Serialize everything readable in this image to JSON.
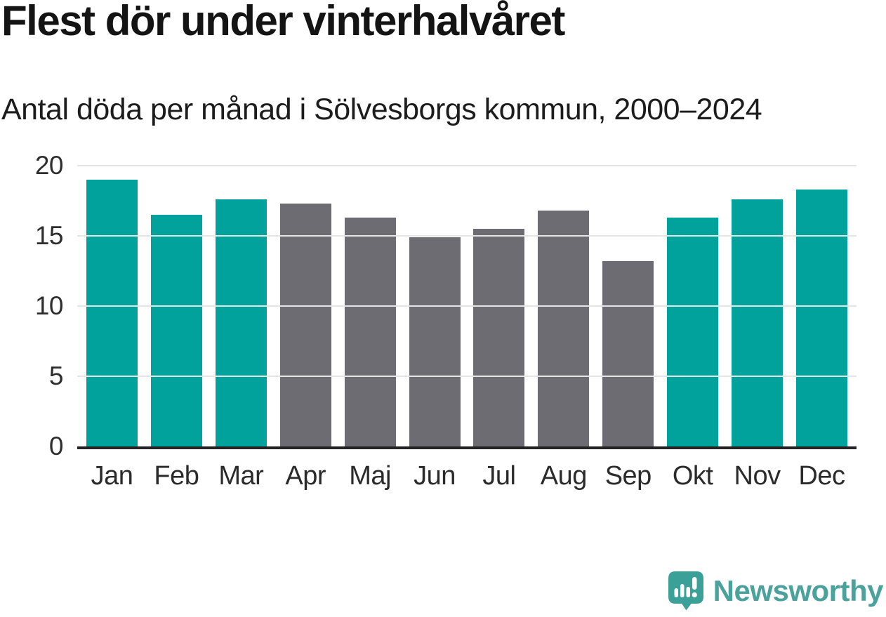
{
  "title": "Flest dör under vinterhalvåret",
  "subtitle": "Antal döda per månad i Sölvesborgs kommun, 2000–2024",
  "chart_data": {
    "type": "bar",
    "title": "Flest dör under vinterhalvåret",
    "subtitle": "Antal döda per månad i Sölvesborgs kommun, 2000–2024",
    "categories": [
      "Jan",
      "Feb",
      "Mar",
      "Apr",
      "Maj",
      "Jun",
      "Jul",
      "Aug",
      "Sep",
      "Okt",
      "Nov",
      "Dec"
    ],
    "values": [
      19.0,
      16.5,
      17.6,
      17.3,
      16.3,
      14.9,
      15.5,
      16.8,
      13.2,
      16.3,
      17.6,
      18.3
    ],
    "bar_groups": [
      "winter",
      "winter",
      "winter",
      "summer",
      "summer",
      "summer",
      "summer",
      "summer",
      "summer",
      "winter",
      "winter",
      "winter"
    ],
    "group_colors": {
      "winter": "#00A29B",
      "summer": "#6C6C72"
    },
    "xlabel": "",
    "ylabel": "",
    "ylim": [
      0,
      20
    ],
    "yticks": [
      0,
      5,
      10,
      15,
      20
    ],
    "grid": true,
    "legend": false
  },
  "footer": {
    "brand": "Newsworthy"
  },
  "colors": {
    "accent_teal": "#00A29B",
    "neutral_gray": "#6C6C72",
    "gridline": "#E5E5E5",
    "axis_line": "#242424",
    "text": "#1A1A1A",
    "brand_teal": "#4BA19C",
    "logo_bubble": "#3BA097"
  }
}
